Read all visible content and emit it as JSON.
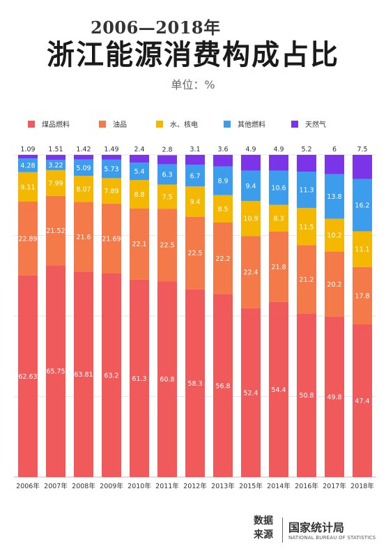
{
  "header": {
    "years": "2006—2018年",
    "title": "浙江能源消费构成占比",
    "unit": "单位：%"
  },
  "chart_data": {
    "type": "bar",
    "stacked": true,
    "categories": [
      "2006年",
      "2007年",
      "2008年",
      "2009年",
      "2010年",
      "2011年",
      "2012年",
      "2013年",
      "2015年",
      "2014年",
      "2016年",
      "2017年",
      "2018年"
    ],
    "series": [
      {
        "name": "煤品燃料",
        "color": "#f05a5a",
        "values": [
          62.63,
          65.75,
          63.81,
          63.2,
          61.3,
          60.8,
          58.3,
          56.8,
          52.4,
          54.4,
          50.8,
          49.8,
          47.4
        ],
        "labels": [
          "62.63",
          "65.75",
          "63.81",
          "63.2",
          "61.3",
          "60.8",
          "58.3",
          "56.8",
          "52.4",
          "54.4",
          "50.8",
          "49.8",
          "47.4"
        ]
      },
      {
        "name": "油品",
        "color": "#f47a4a",
        "values": [
          22.89,
          21.52,
          21.6,
          21.69,
          22.1,
          22.5,
          22.5,
          22.2,
          22.4,
          21.8,
          21.2,
          20.2,
          17.8
        ],
        "labels": [
          "22.89",
          "21.52",
          "21.6",
          "21.69",
          "22.1",
          "22.5",
          "22.5",
          "22.2",
          "22.4",
          "21.8",
          "21.2",
          "20.2",
          "17.8"
        ]
      },
      {
        "name": "水、核电",
        "color": "#f5b800",
        "values": [
          9.11,
          7.99,
          8.07,
          7.89,
          8.8,
          7.5,
          9.4,
          8.5,
          10.9,
          8.3,
          11.5,
          10.2,
          11.1
        ],
        "labels": [
          "9.11",
          "7.99",
          "8.07",
          "7.89",
          "8.8",
          "7.5",
          "9.4",
          "8.5",
          "10.9",
          "8.3",
          "11.5",
          "10.2",
          "11.1"
        ]
      },
      {
        "name": "其他燃料",
        "color": "#3c9ded",
        "values": [
          4.28,
          3.22,
          5.09,
          5.73,
          5.4,
          6.3,
          6.7,
          8.9,
          9.4,
          10.6,
          11.3,
          13.8,
          16.2
        ],
        "labels": [
          "4.28",
          "3.22",
          "5.09",
          "5.73",
          "5.4",
          "6.3",
          "6.7",
          "8.9",
          "9.4",
          "10.6",
          "11.3",
          "13.8",
          "16.2"
        ]
      },
      {
        "name": "天然气",
        "color": "#7b34e8",
        "values": [
          1.09,
          1.51,
          1.42,
          1.49,
          2.4,
          2.8,
          3.1,
          3.6,
          4.9,
          4.9,
          5.2,
          6,
          7.5
        ],
        "labels": [
          "1.09",
          "1.51",
          "1.42",
          "1.49",
          "2.4",
          "2.8",
          "3.1",
          "3.6",
          "4.9",
          "4.9",
          "5.2",
          "6",
          "7.5"
        ]
      }
    ],
    "ylim": [
      0,
      100
    ],
    "grid": true,
    "legend_position": "top"
  },
  "source": {
    "label": "数据来源",
    "org": "国家统计局",
    "org_en": "NATIONAL BUREAU OF STATISTICS"
  }
}
